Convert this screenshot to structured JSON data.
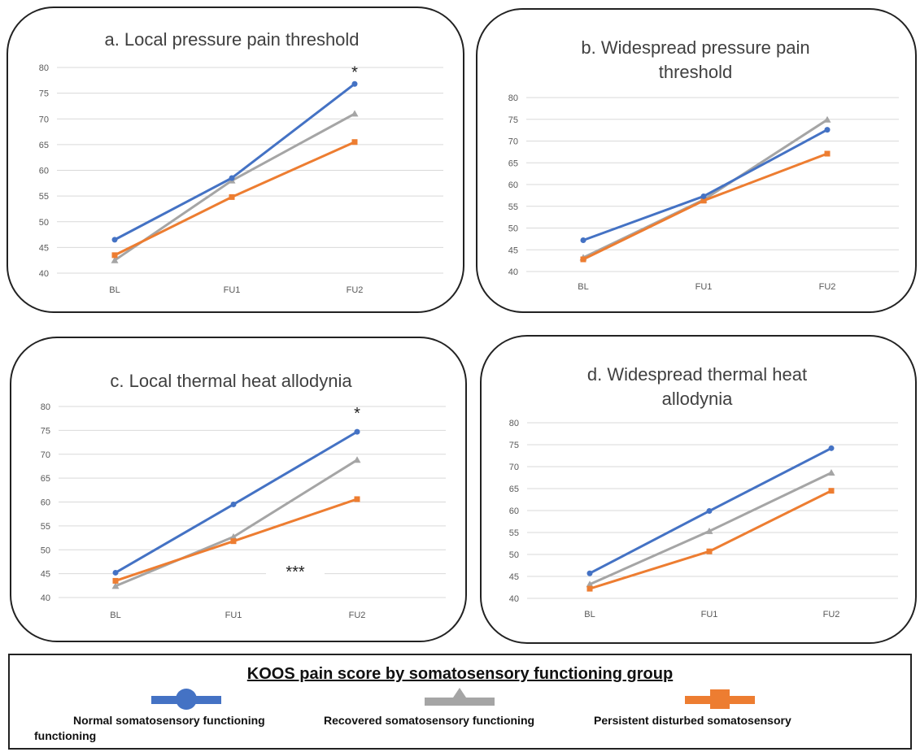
{
  "colors": {
    "normal": "#4472C4",
    "recovered": "#A5A5A5",
    "persistent": "#ED7D31"
  },
  "legend": {
    "title": "KOOS pain score by somatosensory functioning group",
    "items": [
      {
        "label": "Normal somatosensory functioning",
        "marker": "circle"
      },
      {
        "label": "Recovered somatosensory functioning",
        "marker": "triangle"
      },
      {
        "label": "Persistent disturbed somatosensory",
        "marker": "square"
      }
    ],
    "wrap_label": "functioning"
  },
  "chart_data": [
    {
      "type": "line",
      "title": [
        "a. Local pressure pain threshold"
      ],
      "categories": [
        "BL",
        "FU1",
        "FU2"
      ],
      "ylim": [
        40,
        80
      ],
      "yticks": [
        "40",
        "45",
        "50",
        "55",
        "60",
        "65",
        "70",
        "75",
        "80"
      ],
      "grid": true,
      "series": [
        {
          "name": "Normal somatosensory functioning",
          "values": [
            46.5,
            58.5,
            76.8
          ]
        },
        {
          "name": "Recovered somatosensory functioning",
          "values": [
            42.5,
            58.0,
            71.0
          ]
        },
        {
          "name": "Persistent disturbed somatosensory functioning",
          "values": [
            43.5,
            54.8,
            65.5
          ]
        }
      ],
      "annotations": [
        {
          "text": "*",
          "category": "FU2",
          "y": 79
        }
      ]
    },
    {
      "type": "line",
      "title": [
        "b. Widespread pressure pain",
        "threshold"
      ],
      "categories": [
        "BL",
        "FU1",
        "FU2"
      ],
      "ylim": [
        40,
        80
      ],
      "yticks": [
        "40",
        "45",
        "50",
        "55",
        "60",
        "65",
        "70",
        "75",
        "80"
      ],
      "grid": true,
      "series": [
        {
          "name": "Normal somatosensory functioning",
          "values": [
            47.2,
            57.3,
            72.6
          ]
        },
        {
          "name": "Recovered somatosensory functioning",
          "values": [
            43.2,
            56.5,
            74.9
          ]
        },
        {
          "name": "Persistent disturbed somatosensory functioning",
          "values": [
            42.8,
            56.3,
            67.1
          ]
        }
      ],
      "annotations": []
    },
    {
      "type": "line",
      "title": [
        "c. Local thermal heat allodynia"
      ],
      "categories": [
        "BL",
        "FU1",
        "FU2"
      ],
      "ylim": [
        40,
        80
      ],
      "yticks": [
        "40",
        "45",
        "50",
        "55",
        "60",
        "65",
        "70",
        "75",
        "80"
      ],
      "grid": true,
      "series": [
        {
          "name": "Normal somatosensory functioning",
          "values": [
            45.2,
            59.5,
            74.7
          ]
        },
        {
          "name": "Recovered somatosensory functioning",
          "values": [
            42.4,
            52.7,
            68.8
          ]
        },
        {
          "name": "Persistent disturbed somatosensory functioning",
          "values": [
            43.5,
            51.8,
            60.6
          ]
        }
      ],
      "annotations": [
        {
          "text": "*",
          "category": "FU2",
          "y": 78.5
        },
        {
          "text": "***",
          "category_between": [
            "FU1",
            "FU2"
          ],
          "y": 45.3
        }
      ]
    },
    {
      "type": "line",
      "title": [
        "d. Widespread thermal heat",
        "allodynia"
      ],
      "categories": [
        "BL",
        "FU1",
        "FU2"
      ],
      "ylim": [
        40,
        80
      ],
      "yticks": [
        "40",
        "45",
        "50",
        "55",
        "60",
        "65",
        "70",
        "75",
        "80"
      ],
      "grid": true,
      "series": [
        {
          "name": "Normal somatosensory functioning",
          "values": [
            45.7,
            59.9,
            74.2
          ]
        },
        {
          "name": "Recovered somatosensory functioning",
          "values": [
            43.2,
            55.3,
            68.6
          ]
        },
        {
          "name": "Persistent disturbed somatosensory functioning",
          "values": [
            42.2,
            50.7,
            64.5
          ]
        }
      ],
      "annotations": []
    }
  ]
}
